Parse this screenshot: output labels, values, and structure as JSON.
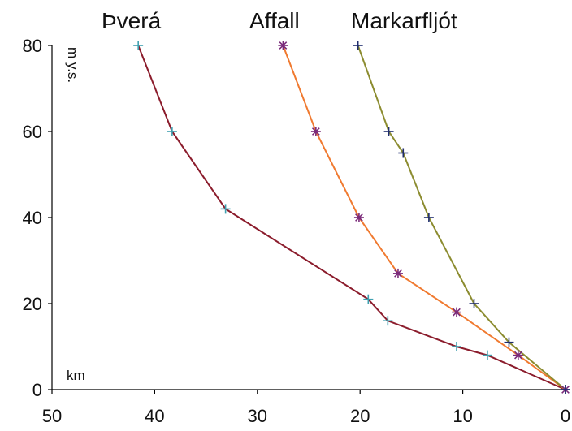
{
  "chart_data": {
    "type": "line",
    "xlabel": "km",
    "ylabel": "m y.s.",
    "xlim": [
      50,
      0
    ],
    "ylim": [
      0,
      80
    ],
    "xticks": [
      "50",
      "40",
      "30",
      "20",
      "10",
      "0"
    ],
    "yticks": [
      "80",
      "60",
      "40",
      "20",
      "0"
    ],
    "grid": false,
    "legend": "none",
    "series": [
      {
        "name": "Þverá",
        "color": "#8b1c2c",
        "marker": "plus",
        "marker_color": "#3fa0b0",
        "points": [
          [
            41.6,
            80
          ],
          [
            38.3,
            60
          ],
          [
            33.1,
            42
          ],
          [
            19.2,
            21
          ],
          [
            17.3,
            16
          ],
          [
            10.6,
            10
          ],
          [
            7.6,
            8
          ],
          [
            0,
            0
          ]
        ]
      },
      {
        "name": "Affall",
        "color": "#f07a30",
        "marker": "asterisk",
        "marker_color": "#7a2a7a",
        "points": [
          [
            27.5,
            80
          ],
          [
            24.3,
            60
          ],
          [
            20.1,
            40
          ],
          [
            16.3,
            27
          ],
          [
            10.6,
            18
          ],
          [
            4.6,
            8
          ],
          [
            0,
            0
          ]
        ]
      },
      {
        "name": "Markarfljót",
        "color": "#8c8c30",
        "marker": "plus",
        "marker_color": "#1f2d6e",
        "points": [
          [
            20.2,
            80
          ],
          [
            17.2,
            60
          ],
          [
            15.8,
            55
          ],
          [
            13.3,
            40
          ],
          [
            8.9,
            20
          ],
          [
            5.5,
            11
          ],
          [
            0,
            0
          ]
        ]
      }
    ]
  }
}
